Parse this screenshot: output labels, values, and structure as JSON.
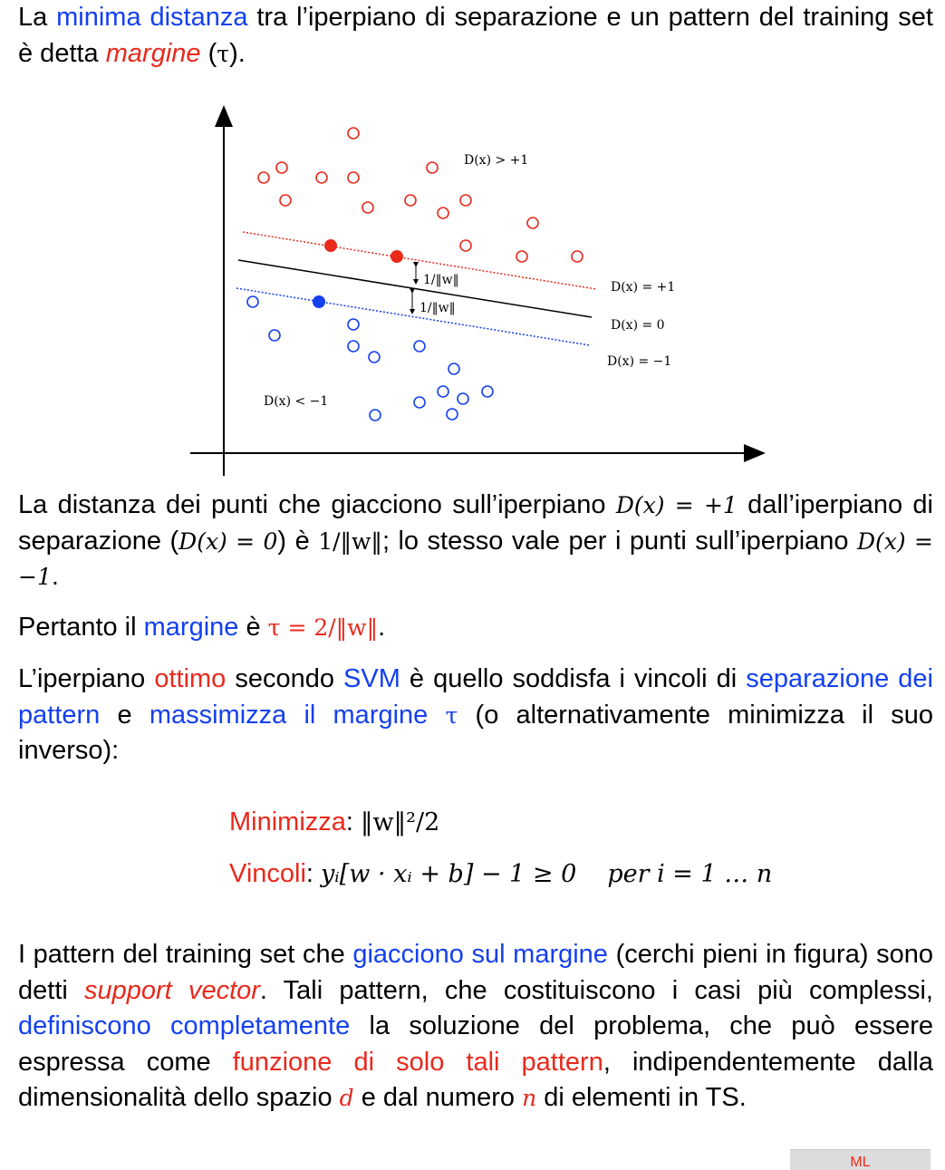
{
  "intro": {
    "p1": "La ",
    "p2": "minima distanza",
    "p3": " tra l’iperpiano di separazione e un pattern del training set è detta ",
    "p4": "margine",
    "p5": " (",
    "p6": "τ",
    "p7": ")."
  },
  "figure": {
    "label_gt": "D(x) > +1",
    "label_plus": "D(x) = +1",
    "label_zero": "D(x) = 0",
    "label_minus": "D(x) = −1",
    "label_lt": "D(x) < −1",
    "dist_label": "1/‖w‖",
    "colors": {
      "red": "#e8291c",
      "blue": "#1440f0",
      "axis": "#000000"
    }
  },
  "distance": {
    "t1": "La distanza dei punti che giacciono sull’iperpiano ",
    "m1": "D(x) = +1",
    "t2": " dall’iperpiano di separazione (",
    "m2": "D(x) = 0",
    "t3": ") è ",
    "m3": "1/‖w‖",
    "t4": "; lo stesso vale per i punti sull’iperpiano ",
    "m4": "D(x) = −1",
    "t5": "."
  },
  "margin_line": {
    "t1": "Pertanto il ",
    "t2": "margine",
    "t3": " è ",
    "m1": "τ = 2/‖w‖",
    "t4": "."
  },
  "optimum": {
    "t1": "L’iperpiano ",
    "t2": "ottimo",
    "t3": " secondo ",
    "t4": "SVM",
    "t5": " è quello soddisfa i vincoli di ",
    "t6": "separazione dei pattern",
    "t7": " e ",
    "t8": "massimizza il margine",
    "t9": " ",
    "m1": "τ",
    "t10": " (o alternativamente minimizza il suo inverso):"
  },
  "equations": {
    "min_label": "Minimizza",
    "min_colon": ": ",
    "min_expr": "‖w‖²/2",
    "con_label": "Vincoli",
    "con_colon": ":  ",
    "con_expr": "yᵢ[w · xᵢ + b] − 1 ≥ 0",
    "con_for": "per  i = 1 … n"
  },
  "support": {
    "t1": "I pattern del training set che ",
    "t2": "giacciono sul margine",
    "t3": " (cerchi pieni in figura) sono detti ",
    "t4": "support vector",
    "t5": ". Tali pattern, che costituiscono i casi più complessi, ",
    "t6": "definiscono completamente",
    "t7": " la soluzione del problema, che può essere espressa come ",
    "t8": "funzione di solo tali pattern",
    "t9": ", indipendentemente dalla dimensionalità dello spazio ",
    "m1": "d",
    "t10": " e dal numero ",
    "m2": "n",
    "t11": " di elementi in TS."
  },
  "footer": {
    "label": "ML"
  }
}
